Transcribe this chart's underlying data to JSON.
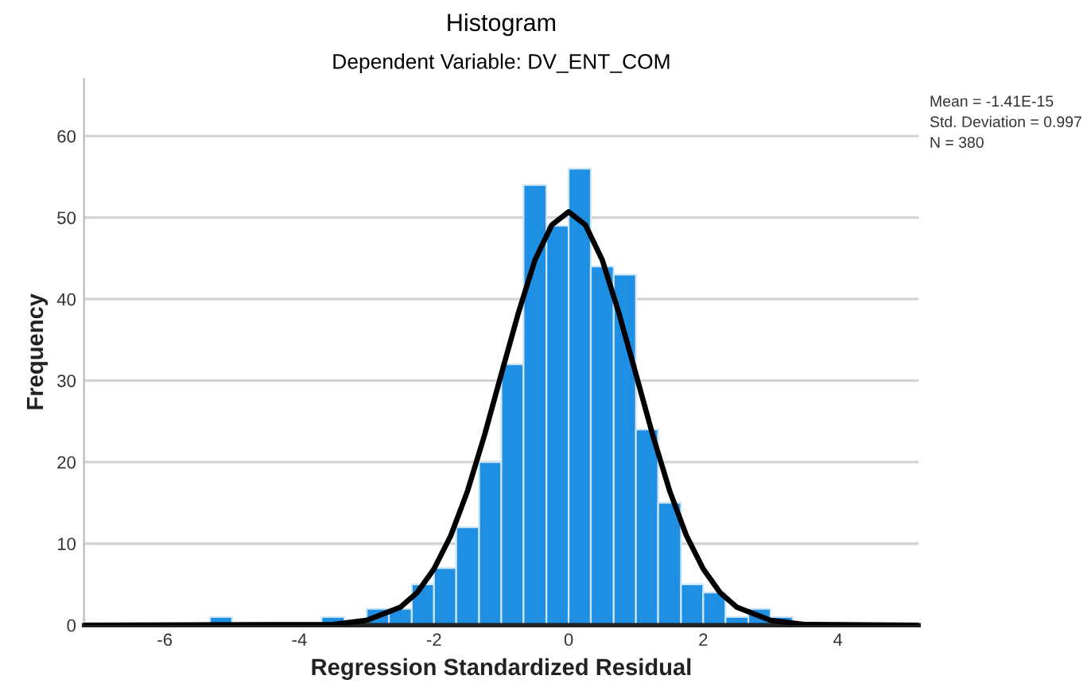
{
  "chart_data": {
    "type": "histogram",
    "title": "Histogram",
    "subtitle": "Dependent Variable: DV_ENT_COM",
    "xlabel": "Regression Standardized Residual",
    "ylabel": "Frequency",
    "bins": [
      -5.33,
      -5,
      -3.67,
      -3.33,
      -3,
      -2.67,
      -2.33,
      -2,
      -1.67,
      -1.33,
      -1,
      -0.67,
      -0.33,
      0,
      0.33,
      0.67,
      1,
      1.33,
      1.67,
      2,
      2.33,
      2.67,
      3,
      3.33
    ],
    "values": [
      1,
      0,
      1,
      0,
      2,
      2,
      5,
      7,
      12,
      20,
      32,
      54,
      49,
      56,
      44,
      43,
      24,
      15,
      5,
      4,
      1,
      2,
      1
    ],
    "color": "#1e8fe3",
    "series": [
      {
        "type": "line",
        "color": "#000000",
        "x": [
          -7.2,
          -3.5,
          -3,
          -2.5,
          -2.25,
          -2,
          -1.75,
          -1.5,
          -1.25,
          -1,
          -0.75,
          -0.5,
          -0.25,
          0,
          0.25,
          0.5,
          0.75,
          1,
          1.25,
          1.5,
          1.75,
          2,
          2.25,
          2.5,
          3,
          3.5,
          5.2
        ],
        "values": [
          0,
          0.1,
          0.6,
          2.2,
          4,
          6.9,
          11,
          16.5,
          23.3,
          30.8,
          38.2,
          44.8,
          49.1,
          50.7,
          49.1,
          44.8,
          38.2,
          30.8,
          23.3,
          16.5,
          11,
          6.9,
          4,
          2.2,
          0.6,
          0.1,
          0
        ]
      }
    ],
    "annotations": [
      "Mean = -1.41E-15",
      "Std. Deviation = 0.997",
      "N = 380"
    ],
    "xlim": [
      -7.2,
      5.2
    ],
    "xticks": [
      -6,
      -4,
      -2,
      0,
      2,
      4
    ],
    "ylim": [
      0,
      67
    ],
    "yticks": [
      0,
      10,
      20,
      30,
      40,
      50,
      60
    ],
    "grid": "y",
    "legend": false,
    "marker": "none",
    "line_style": "solid"
  }
}
